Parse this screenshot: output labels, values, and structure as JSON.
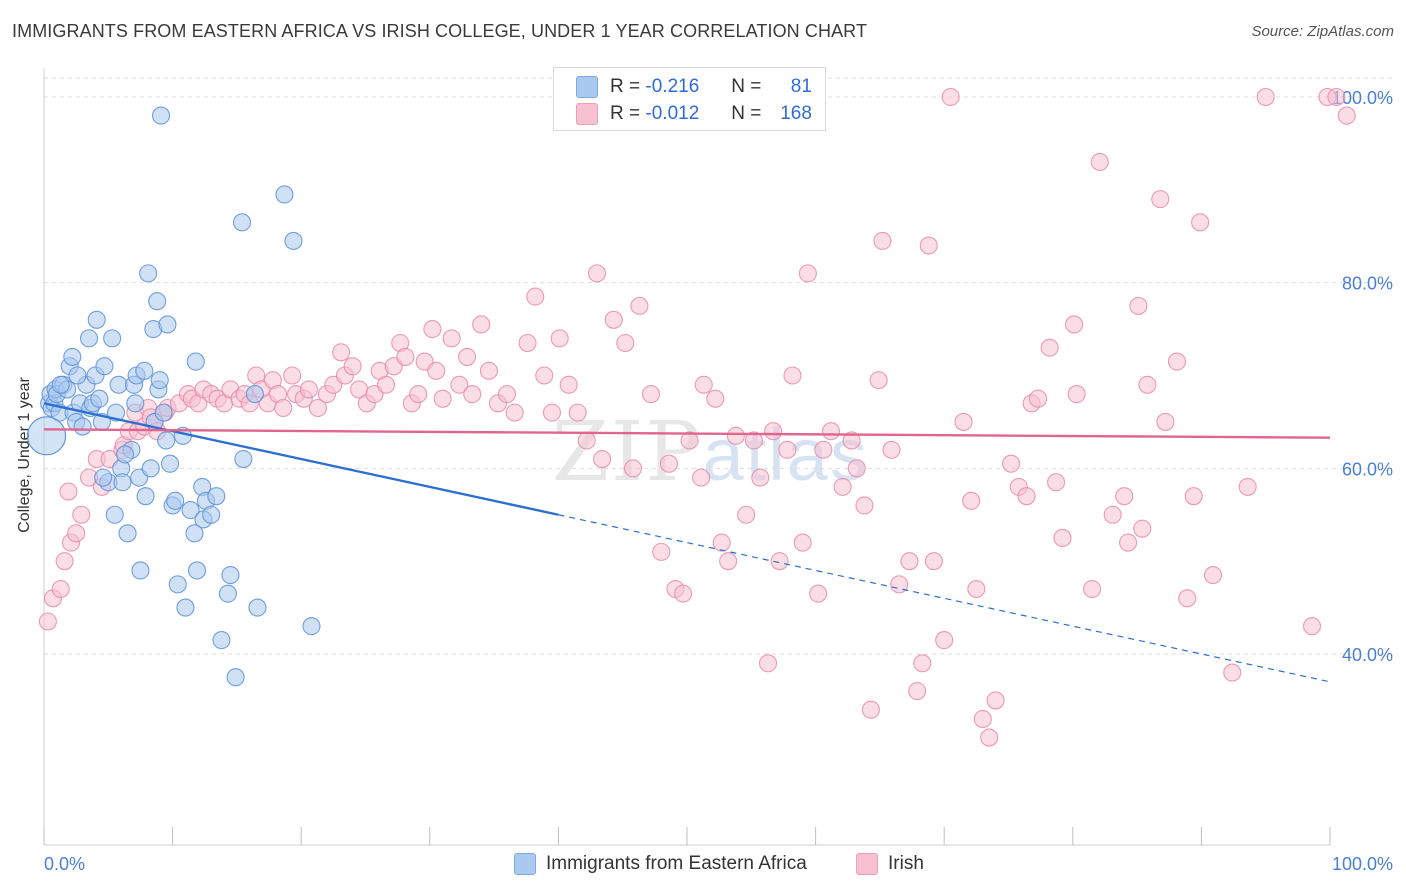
{
  "header": {
    "title": "IMMIGRANTS FROM EASTERN AFRICA VS IRISH COLLEGE, UNDER 1 YEAR CORRELATION CHART",
    "source": "Source: ZipAtlas.com"
  },
  "watermark": {
    "zip": "ZIP",
    "atlas": "atlas"
  },
  "legend": {
    "rows": [
      {
        "r_label": "R =",
        "r_value": "-0.216",
        "n_label": "N =",
        "n_value": "81",
        "color": "#a9c8f0"
      },
      {
        "r_label": "R =",
        "r_value": "-0.012",
        "n_label": "N =",
        "n_value": "168",
        "color": "#f7b5c9"
      }
    ]
  },
  "bottom_legend": {
    "series_a": "Immigrants from Eastern Africa",
    "series_b": "Irish"
  },
  "colors": {
    "blue_fill": "#aac9ef",
    "blue_stroke": "#5b8fd8",
    "blue_line": "#2c6fd0",
    "pink_fill": "#f8c1d2",
    "pink_stroke": "#e98aa9",
    "pink_line": "#e0668e",
    "grid": "#dddddd",
    "tick_text": "#4a7fd4"
  },
  "chart_data": {
    "type": "scatter",
    "title": "IMMIGRANTS FROM EASTERN AFRICA VS IRISH COLLEGE, UNDER 1 YEAR CORRELATION CHART",
    "xlabel": "",
    "ylabel": "College, Under 1 year",
    "xlim": [
      0,
      100
    ],
    "ylim": [
      20,
      100
    ],
    "x_tick_labels": [
      "0.0%",
      "100.0%"
    ],
    "y_tick_labels": [
      "100.0%",
      "80.0%",
      "60.0%",
      "40.0%"
    ],
    "y_ticks": [
      100,
      80,
      60,
      40
    ],
    "grid": true,
    "legend_position": "top-center",
    "series": [
      {
        "name": "Immigrants from Eastern Africa",
        "color": "#aac9ef",
        "points": [
          [
            0.4,
            67
          ],
          [
            0.5,
            68
          ],
          [
            0.6,
            66.5
          ],
          [
            0.8,
            67
          ],
          [
            0.9,
            68.5
          ],
          [
            1,
            68
          ],
          [
            1.2,
            66
          ],
          [
            1.5,
            69
          ],
          [
            1.8,
            68.5
          ],
          [
            2,
            71
          ],
          [
            2.2,
            72
          ],
          [
            2.3,
            66
          ],
          [
            2.5,
            65
          ],
          [
            2.8,
            67
          ],
          [
            3,
            64.5
          ],
          [
            3.3,
            69
          ],
          [
            3.5,
            74
          ],
          [
            3.6,
            66.5
          ],
          [
            3.8,
            67
          ],
          [
            4,
            70
          ],
          [
            4.1,
            76
          ],
          [
            4.3,
            67.5
          ],
          [
            4.5,
            65
          ],
          [
            4.7,
            71
          ],
          [
            5,
            58.5
          ],
          [
            5.3,
            74
          ],
          [
            5.5,
            55
          ],
          [
            5.6,
            66
          ],
          [
            5.8,
            69
          ],
          [
            6,
            60
          ],
          [
            6.1,
            58.5
          ],
          [
            6.5,
            53
          ],
          [
            6.8,
            62
          ],
          [
            7,
            69
          ],
          [
            7.1,
            67
          ],
          [
            7.2,
            70
          ],
          [
            7.4,
            59
          ],
          [
            7.5,
            49
          ],
          [
            7.8,
            70.5
          ],
          [
            7.9,
            57
          ],
          [
            8.1,
            81
          ],
          [
            8.3,
            60
          ],
          [
            8.5,
            75
          ],
          [
            8.6,
            65
          ],
          [
            8.8,
            78
          ],
          [
            8.9,
            68.5
          ],
          [
            9,
            69.5
          ],
          [
            9.1,
            98
          ],
          [
            9.5,
            63
          ],
          [
            9.6,
            75.5
          ],
          [
            9.8,
            60.5
          ],
          [
            10,
            56
          ],
          [
            10.2,
            56.5
          ],
          [
            10.4,
            47.5
          ],
          [
            10.8,
            63.5
          ],
          [
            11,
            45
          ],
          [
            11.4,
            55.5
          ],
          [
            11.7,
            53
          ],
          [
            11.8,
            71.5
          ],
          [
            11.9,
            49
          ],
          [
            12.3,
            58
          ],
          [
            12.4,
            54.5
          ],
          [
            12.6,
            56.5
          ],
          [
            13,
            55
          ],
          [
            13.4,
            57
          ],
          [
            13.8,
            41.5
          ],
          [
            14.3,
            46.5
          ],
          [
            14.5,
            48.5
          ],
          [
            14.9,
            37.5
          ],
          [
            15.4,
            86.5
          ],
          [
            15.5,
            61
          ],
          [
            16.4,
            68
          ],
          [
            16.6,
            45
          ],
          [
            18.7,
            89.5
          ],
          [
            19.4,
            84.5
          ],
          [
            20.8,
            43
          ],
          [
            1.3,
            69
          ],
          [
            2.6,
            70
          ],
          [
            4.6,
            59
          ],
          [
            6.3,
            61.5
          ],
          [
            9.3,
            66
          ]
        ]
      },
      {
        "name": "Irish",
        "color": "#f8c1d2",
        "points": [
          [
            0.3,
            43.5
          ],
          [
            0.7,
            46
          ],
          [
            1.3,
            47
          ],
          [
            1.6,
            50
          ],
          [
            1.9,
            57.5
          ],
          [
            2.1,
            52
          ],
          [
            2.5,
            53
          ],
          [
            2.9,
            55
          ],
          [
            3.5,
            59
          ],
          [
            4.1,
            61
          ],
          [
            4.5,
            58
          ],
          [
            5.1,
            61
          ],
          [
            6.1,
            62
          ],
          [
            6.2,
            62.5
          ],
          [
            6.6,
            64
          ],
          [
            7.1,
            66
          ],
          [
            7.3,
            64
          ],
          [
            7.8,
            64.5
          ],
          [
            8.1,
            66.5
          ],
          [
            8.3,
            65.5
          ],
          [
            8.6,
            65
          ],
          [
            8.8,
            64
          ],
          [
            9.4,
            66
          ],
          [
            9.6,
            66.5
          ],
          [
            10.5,
            67
          ],
          [
            11.2,
            68
          ],
          [
            11.5,
            67.5
          ],
          [
            12,
            67
          ],
          [
            12.4,
            68.5
          ],
          [
            13,
            68
          ],
          [
            13.5,
            67.5
          ],
          [
            14,
            67
          ],
          [
            14.5,
            68.5
          ],
          [
            15.2,
            67.5
          ],
          [
            15.6,
            68
          ],
          [
            16,
            67
          ],
          [
            16.5,
            70
          ],
          [
            16.9,
            68.5
          ],
          [
            17.4,
            67
          ],
          [
            17.8,
            69.5
          ],
          [
            18.2,
            68
          ],
          [
            18.6,
            66.5
          ],
          [
            19.3,
            70
          ],
          [
            19.6,
            68
          ],
          [
            20.2,
            67.5
          ],
          [
            20.6,
            68.5
          ],
          [
            21.3,
            66.5
          ],
          [
            22,
            68
          ],
          [
            22.5,
            69
          ],
          [
            23.1,
            72.5
          ],
          [
            23.4,
            70
          ],
          [
            24,
            71
          ],
          [
            24.5,
            68.5
          ],
          [
            25.1,
            67
          ],
          [
            25.7,
            68
          ],
          [
            26.1,
            70.5
          ],
          [
            26.6,
            69
          ],
          [
            27.2,
            71
          ],
          [
            27.7,
            73.5
          ],
          [
            28.1,
            72
          ],
          [
            28.6,
            67
          ],
          [
            29.1,
            68
          ],
          [
            29.6,
            71.5
          ],
          [
            30.2,
            75
          ],
          [
            30.5,
            70.5
          ],
          [
            31,
            67.5
          ],
          [
            31.7,
            74
          ],
          [
            32.3,
            69
          ],
          [
            32.9,
            72
          ],
          [
            33.3,
            68
          ],
          [
            34,
            75.5
          ],
          [
            34.6,
            70.5
          ],
          [
            35.3,
            67
          ],
          [
            36,
            68
          ],
          [
            36.6,
            66
          ],
          [
            37.6,
            73.5
          ],
          [
            38.2,
            78.5
          ],
          [
            38.9,
            70
          ],
          [
            39.5,
            66
          ],
          [
            40.1,
            74
          ],
          [
            40.8,
            69
          ],
          [
            41.5,
            66
          ],
          [
            42.2,
            63
          ],
          [
            43,
            81
          ],
          [
            43.4,
            61
          ],
          [
            44.3,
            76
          ],
          [
            45.2,
            73.5
          ],
          [
            45.8,
            60
          ],
          [
            46.3,
            77.5
          ],
          [
            47.2,
            68
          ],
          [
            48,
            51
          ],
          [
            48.6,
            60.5
          ],
          [
            49.1,
            47
          ],
          [
            49.7,
            46.5
          ],
          [
            50.2,
            63
          ],
          [
            51.1,
            59
          ],
          [
            51.3,
            69
          ],
          [
            52.2,
            67.5
          ],
          [
            52.7,
            52
          ],
          [
            53.2,
            50
          ],
          [
            53.8,
            63.5
          ],
          [
            54.6,
            55
          ],
          [
            55.2,
            63
          ],
          [
            55.7,
            59
          ],
          [
            56.3,
            39
          ],
          [
            56.7,
            64
          ],
          [
            57.2,
            50
          ],
          [
            57.8,
            62
          ],
          [
            58.2,
            70
          ],
          [
            59,
            52
          ],
          [
            59.4,
            81
          ],
          [
            60.2,
            46.5
          ],
          [
            60.6,
            62
          ],
          [
            61.2,
            64
          ],
          [
            62.1,
            58
          ],
          [
            62.8,
            63
          ],
          [
            63.2,
            60
          ],
          [
            63.8,
            56
          ],
          [
            64.3,
            34
          ],
          [
            64.9,
            69.5
          ],
          [
            65.2,
            84.5
          ],
          [
            65.9,
            62
          ],
          [
            66.5,
            47.5
          ],
          [
            67.3,
            50
          ],
          [
            67.9,
            36
          ],
          [
            68.3,
            39
          ],
          [
            68.8,
            84
          ],
          [
            69.2,
            50
          ],
          [
            70,
            41.5
          ],
          [
            70.5,
            100
          ],
          [
            71.5,
            65
          ],
          [
            72.1,
            56.5
          ],
          [
            72.5,
            47
          ],
          [
            73,
            33
          ],
          [
            73.5,
            31
          ],
          [
            74,
            35
          ],
          [
            75.2,
            60.5
          ],
          [
            75.8,
            58
          ],
          [
            76.4,
            57
          ],
          [
            76.8,
            67
          ],
          [
            77.3,
            67.5
          ],
          [
            78.2,
            73
          ],
          [
            78.7,
            58.5
          ],
          [
            79.2,
            52.5
          ],
          [
            80.1,
            75.5
          ],
          [
            80.3,
            68
          ],
          [
            81.5,
            47
          ],
          [
            82.1,
            93
          ],
          [
            83.1,
            55
          ],
          [
            84,
            57
          ],
          [
            84.3,
            52
          ],
          [
            85.1,
            77.5
          ],
          [
            85.4,
            53.5
          ],
          [
            85.8,
            69
          ],
          [
            86.8,
            89
          ],
          [
            87.2,
            65
          ],
          [
            88.1,
            71.5
          ],
          [
            88.9,
            46
          ],
          [
            89.4,
            57
          ],
          [
            89.9,
            86.5
          ],
          [
            90.9,
            48.5
          ],
          [
            92.4,
            38
          ],
          [
            93.6,
            58
          ],
          [
            95,
            100
          ],
          [
            98.6,
            43
          ],
          [
            99.8,
            100
          ],
          [
            100.5,
            100
          ],
          [
            101.3,
            98
          ]
        ]
      }
    ],
    "trend_lines": [
      {
        "series": "Immigrants from Eastern Africa",
        "x_start": 0,
        "y_start": 67,
        "x_solid_end": 40,
        "y_solid_end": 55,
        "x_end": 100,
        "y_end": 37
      },
      {
        "series": "Irish",
        "x_start": 0,
        "y_start": 64.2,
        "x_end": 100,
        "y_end": 63.3
      }
    ]
  }
}
